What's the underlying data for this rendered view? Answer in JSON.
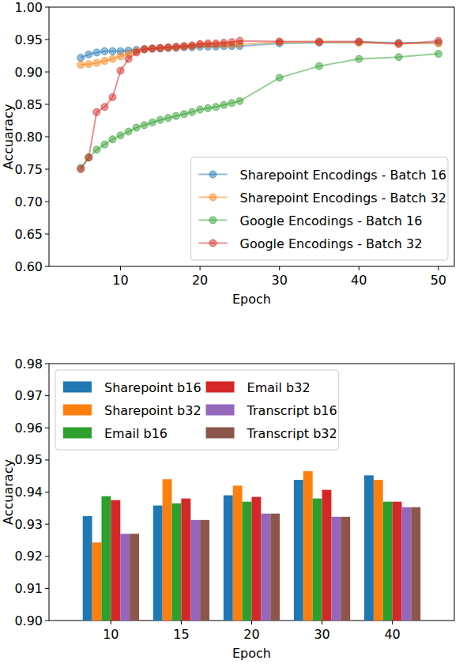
{
  "chart_data": [
    {
      "type": "line",
      "x_label": "Epoch",
      "y_label": "Accuaracy",
      "x": [
        5,
        6,
        7,
        8,
        9,
        10,
        11,
        12,
        13,
        14,
        15,
        16,
        17,
        18,
        19,
        20,
        21,
        22,
        23,
        24,
        25,
        30,
        35,
        40,
        45,
        50
      ],
      "xlim": [
        1,
        52
      ],
      "xticks": [
        10,
        20,
        30,
        40,
        50
      ],
      "ylim": [
        0.6,
        1.0
      ],
      "yticks": [
        {
          "value": 0.6,
          "label": "0.60"
        },
        {
          "value": 0.65,
          "label": "0.65"
        },
        {
          "value": 0.7,
          "label": "0.70"
        },
        {
          "value": 0.75,
          "label": "0.75"
        },
        {
          "value": 0.8,
          "label": "0.80"
        },
        {
          "value": 0.85,
          "label": "0.85"
        },
        {
          "value": 0.9,
          "label": "0.90"
        },
        {
          "value": 0.95,
          "label": "0.95"
        },
        {
          "value": 1.0,
          "label": "1.00"
        }
      ],
      "grid": false,
      "legend": "lower right",
      "marker": "circle",
      "series": [
        {
          "name": "Sharepoint Encodings - Batch 16",
          "color": "#1f77b4",
          "values": [
            0.922,
            0.927,
            0.93,
            0.932,
            0.932,
            0.932,
            0.933,
            0.934,
            0.935,
            0.936,
            0.936,
            0.937,
            0.937,
            0.938,
            0.938,
            0.939,
            0.939,
            0.939,
            0.94,
            0.94,
            0.94,
            0.944,
            0.945,
            0.946,
            0.945,
            0.945
          ]
        },
        {
          "name": "Sharepoint Encodings - Batch 32",
          "color": "#ff7f0e",
          "values": [
            0.911,
            0.912,
            0.914,
            0.917,
            0.92,
            0.924,
            0.928,
            0.932,
            0.935,
            0.936,
            0.937,
            0.937,
            0.938,
            0.939,
            0.94,
            0.942,
            0.942,
            0.942,
            0.942,
            0.942,
            0.943,
            0.946,
            0.946,
            0.945,
            0.944,
            0.944
          ]
        },
        {
          "name": "Google Encodings - Batch 16",
          "color": "#2ca02c",
          "values": [
            0.752,
            0.768,
            0.78,
            0.788,
            0.796,
            0.802,
            0.808,
            0.814,
            0.818,
            0.822,
            0.826,
            0.829,
            0.832,
            0.835,
            0.838,
            0.842,
            0.844,
            0.846,
            0.849,
            0.852,
            0.855,
            0.891,
            0.909,
            0.92,
            0.923,
            0.928
          ]
        },
        {
          "name": "Google Encodings - Batch 32",
          "color": "#d62728",
          "values": [
            0.75,
            0.768,
            0.838,
            0.846,
            0.861,
            0.902,
            0.92,
            0.93,
            0.935,
            0.936,
            0.937,
            0.938,
            0.939,
            0.94,
            0.941,
            0.943,
            0.944,
            0.944,
            0.945,
            0.946,
            0.948,
            0.947,
            0.947,
            0.947,
            0.943,
            0.948
          ]
        }
      ]
    },
    {
      "type": "bar",
      "x_label": "Epoch",
      "y_label": "Accuaracy",
      "categories": [
        "10",
        "15",
        "20",
        "30",
        "40"
      ],
      "ylim": [
        0.9,
        0.98
      ],
      "yticks": [
        {
          "value": 0.9,
          "label": "0.90"
        },
        {
          "value": 0.91,
          "label": "0.91"
        },
        {
          "value": 0.92,
          "label": "0.92"
        },
        {
          "value": 0.93,
          "label": "0.93"
        },
        {
          "value": 0.94,
          "label": "0.94"
        },
        {
          "value": 0.95,
          "label": "0.95"
        },
        {
          "value": 0.96,
          "label": "0.96"
        },
        {
          "value": 0.97,
          "label": "0.97"
        },
        {
          "value": 0.98,
          "label": "0.98"
        }
      ],
      "grid": false,
      "legend": "upper left",
      "series": [
        {
          "name": "Sharepoint b16",
          "color": "#1f77b4",
          "values": [
            0.9325,
            0.9358,
            0.939,
            0.9438,
            0.9452
          ]
        },
        {
          "name": "Sharepoint b32",
          "color": "#ff7f0e",
          "values": [
            0.9243,
            0.944,
            0.942,
            0.9465,
            0.9438
          ]
        },
        {
          "name": "Email b16",
          "color": "#2ca02c",
          "values": [
            0.9387,
            0.9365,
            0.937,
            0.938,
            0.937
          ]
        },
        {
          "name": "Email b32",
          "color": "#d62728",
          "values": [
            0.9375,
            0.938,
            0.9385,
            0.9407,
            0.937
          ]
        },
        {
          "name": "Transcript b16",
          "color": "#9467bd",
          "values": [
            0.927,
            0.9313,
            0.9333,
            0.9323,
            0.9353
          ]
        },
        {
          "name": "Transcript b32",
          "color": "#8c564b",
          "values": [
            0.927,
            0.9313,
            0.9333,
            0.9323,
            0.9353
          ]
        }
      ]
    }
  ]
}
